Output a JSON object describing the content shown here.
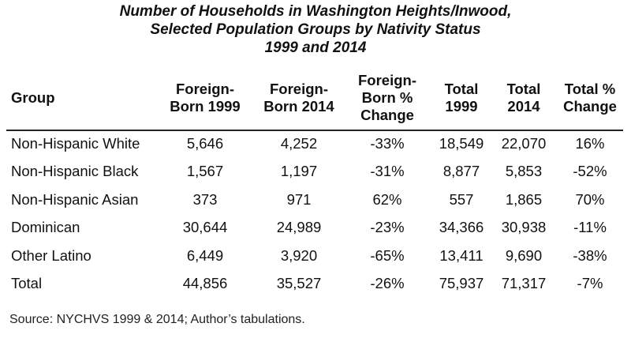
{
  "chart_data": {
    "type": "table",
    "title_lines": [
      "Number of Households in Washington Heights/Inwood,",
      "Selected Population Groups by Nativity Status",
      "1999 and 2014"
    ],
    "columns": [
      {
        "key": "group",
        "lines": [
          "Group"
        ]
      },
      {
        "key": "fb1999",
        "lines": [
          "Foreign-",
          "Born 1999"
        ]
      },
      {
        "key": "fb2014",
        "lines": [
          "Foreign-",
          "Born 2014"
        ]
      },
      {
        "key": "fbchg",
        "lines": [
          "Foreign-",
          "Born %",
          "Change"
        ]
      },
      {
        "key": "t1999",
        "lines": [
          "Total",
          "1999"
        ]
      },
      {
        "key": "t2014",
        "lines": [
          "Total",
          "2014"
        ]
      },
      {
        "key": "tchg",
        "lines": [
          "Total %",
          "Change"
        ]
      }
    ],
    "rows": [
      [
        "Non-Hispanic White",
        "5,646",
        "4,252",
        "-33%",
        "18,549",
        "22,070",
        "16%"
      ],
      [
        "Non-Hispanic Black",
        "1,567",
        "1,197",
        "-31%",
        "8,877",
        "5,853",
        "-52%"
      ],
      [
        "Non-Hispanic Asian",
        "373",
        "971",
        "62%",
        "557",
        "1,865",
        "70%"
      ],
      [
        "Dominican",
        "30,644",
        "24,989",
        "-23%",
        "34,366",
        "30,938",
        "-11%"
      ],
      [
        "Other Latino",
        "6,449",
        "3,920",
        "-65%",
        "13,411",
        "9,690",
        "-38%"
      ],
      [
        "Total",
        "44,856",
        "35,527",
        "-26%",
        "75,937",
        "71,317",
        "-7%"
      ]
    ],
    "source": "Source: NYCHVS 1999 & 2014; Author’s tabulations."
  }
}
